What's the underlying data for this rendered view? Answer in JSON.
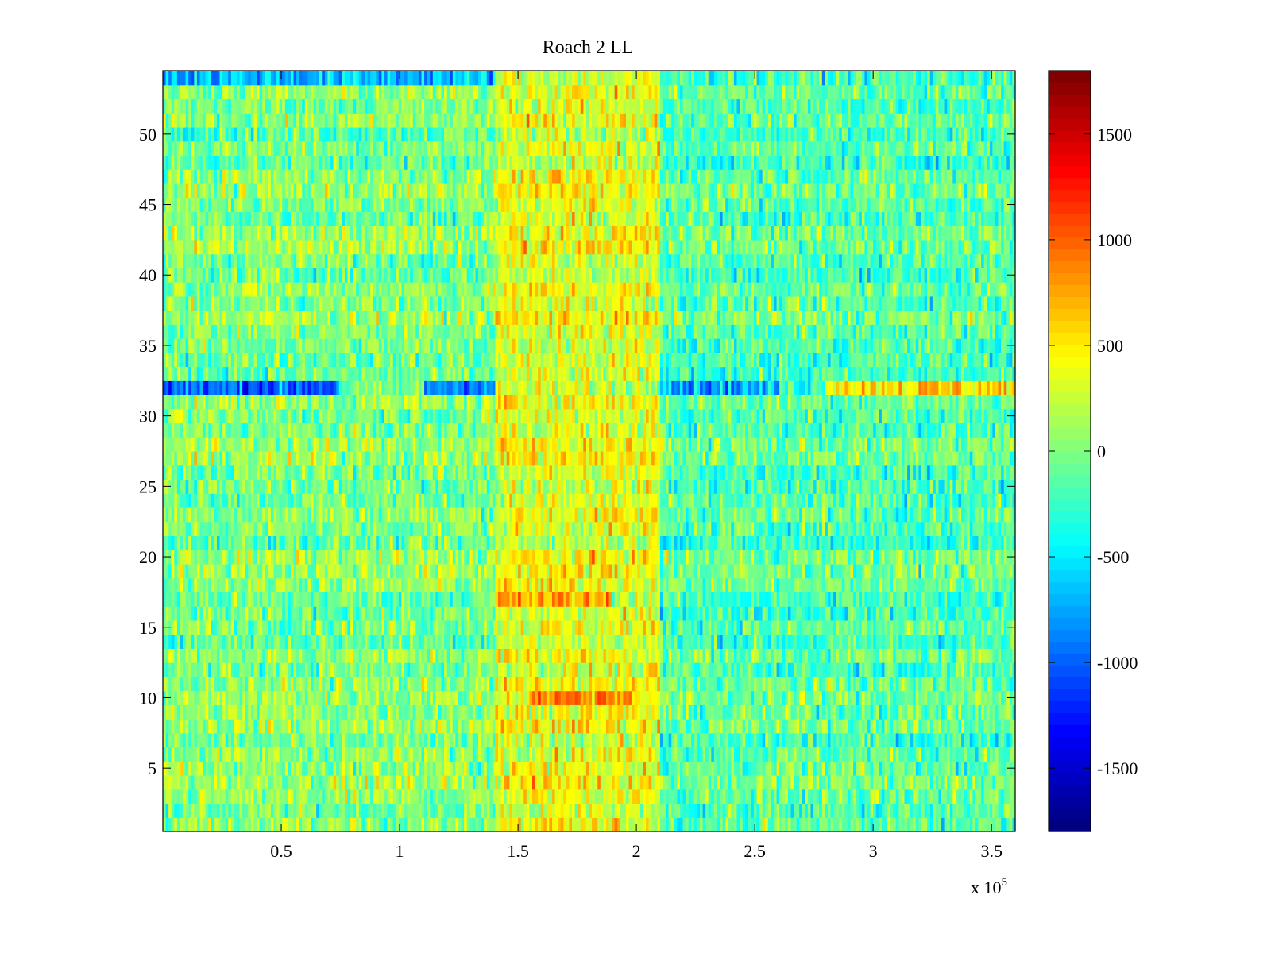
{
  "chart_data": {
    "type": "heatmap",
    "title": "Roach 2 LL",
    "xlabel": "",
    "ylabel": "",
    "x_exponent_label": "x 10",
    "x_exponent_power": "5",
    "xlim": [
      0,
      3.6
    ],
    "ylim": [
      0.5,
      54.5
    ],
    "x_ticks": [
      {
        "value": 0.5,
        "label": "0.5"
      },
      {
        "value": 1,
        "label": "1"
      },
      {
        "value": 1.5,
        "label": "1.5"
      },
      {
        "value": 2,
        "label": "2"
      },
      {
        "value": 2.5,
        "label": "2.5"
      },
      {
        "value": 3,
        "label": "3"
      },
      {
        "value": 3.5,
        "label": "3.5"
      }
    ],
    "y_ticks": [
      {
        "value": 5,
        "label": "5"
      },
      {
        "value": 10,
        "label": "10"
      },
      {
        "value": 15,
        "label": "15"
      },
      {
        "value": 20,
        "label": "20"
      },
      {
        "value": 25,
        "label": "25"
      },
      {
        "value": 30,
        "label": "30"
      },
      {
        "value": 35,
        "label": "35"
      },
      {
        "value": 40,
        "label": "40"
      },
      {
        "value": 45,
        "label": "45"
      },
      {
        "value": 50,
        "label": "50"
      }
    ],
    "rows": 54,
    "colorbar": {
      "colormap": "jet",
      "clim": [
        -1800,
        1800
      ],
      "ticks": [
        {
          "value": 1500,
          "label": "1500"
        },
        {
          "value": 1000,
          "label": "1000"
        },
        {
          "value": 500,
          "label": "500"
        },
        {
          "value": 0,
          "label": "0"
        },
        {
          "value": -500,
          "label": "-500"
        },
        {
          "value": -1000,
          "label": "-1000"
        },
        {
          "value": -1500,
          "label": "-1500"
        }
      ]
    },
    "segments": [
      {
        "x_start": 0,
        "x_end": 1.4,
        "mean": 0
      },
      {
        "x_start": 1.4,
        "x_end": 2.1,
        "mean": 350
      },
      {
        "x_start": 2.1,
        "x_end": 3.6,
        "mean": -150
      }
    ],
    "notable_rows": [
      {
        "row": 32,
        "x_start": 0,
        "x_end": 0.75,
        "mean": -900
      },
      {
        "row": 32,
        "x_start": 1.1,
        "x_end": 1.4,
        "mean": -700
      },
      {
        "row": 32,
        "x_start": 2.15,
        "x_end": 2.6,
        "mean": -650
      },
      {
        "row": 32,
        "x_start": 2.8,
        "x_end": 3.6,
        "mean": 700
      },
      {
        "row": 17,
        "x_start": 1.4,
        "x_end": 1.9,
        "mean": 800
      },
      {
        "row": 10,
        "x_start": 1.55,
        "x_end": 2.0,
        "mean": 800
      },
      {
        "row": 54,
        "x_start": 0,
        "x_end": 1.4,
        "mean": -600
      }
    ]
  }
}
